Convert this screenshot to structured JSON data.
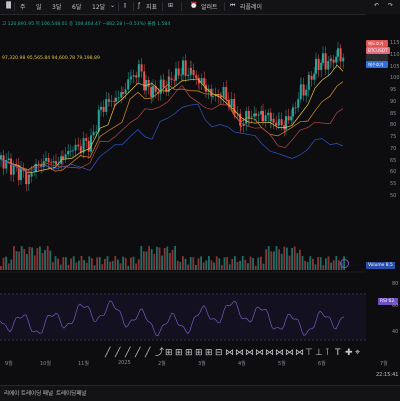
{
  "toolbar": {
    "items": [
      {
        "label": "주",
        "name": "tf-week"
      },
      {
        "label": "일",
        "name": "tf-day"
      },
      {
        "label": "3달",
        "name": "tf-3m"
      },
      {
        "label": "6달",
        "name": "tf-6m"
      },
      {
        "label": "12달",
        "name": "tf-12m"
      }
    ],
    "indicators_label": "지표",
    "alert_label": "얼러트",
    "replay_label": "리플레이"
  },
  "legend": {
    "ohlc": "고 120,891.95  저 106,548.01  종 108,464.47  −882.28 (−0.53%)  볼륨 1.584",
    "ma": "97,320.98  95,565.84  94,600.78  79,198.89"
  },
  "price_axis": {
    "ticks": [
      "115",
      "110",
      "105",
      "100",
      "95",
      "90",
      "85",
      "80",
      "75",
      "70",
      "65",
      "60",
      "55",
      "50"
    ],
    "tags": [
      {
        "label": "매도호가",
        "bg": "#e05454",
        "color": "#ffffff"
      },
      {
        "label": "BTCUSDT",
        "bg": "#e06a7a",
        "color": "#ffffff"
      },
      {
        "label": "",
        "bg": "#2a2a2e",
        "color": "#ffffff"
      },
      {
        "label": "매수호가",
        "bg": "#2f6fe0",
        "color": "#ffffff"
      }
    ]
  },
  "volume_label": "Volume",
  "volume_value": "8.5",
  "rsi_label": "RSI",
  "rsi_value": "62.",
  "rsi_ticks": [
    "80",
    "60",
    "40"
  ],
  "time_axis": [
    "9월",
    "10월",
    "11월",
    "2025",
    "2월",
    "3월",
    "4월",
    "5월",
    "6월",
    "7월"
  ],
  "drawing_tools": [
    "╱",
    "╱",
    "╱",
    "╱",
    "╱",
    "⤴",
    "⊞",
    "⊞",
    "⊞",
    "⊞",
    "⊞",
    "⊟",
    "⋈",
    "⋈",
    "⋈",
    "⋈",
    "⋈",
    "⋈",
    "⋈",
    "⋈",
    "⊤",
    "⊥",
    "⊺",
    "T",
    "✚",
    "⌖"
  ],
  "bottom_panel": {
    "left": "리에이 트레이딩 패널",
    "right": "트레이딩패널",
    "clock": "22:15:41"
  },
  "colors": {
    "up": "#26a69a",
    "down": "#ef5350",
    "ma_yellow": "#e8c547",
    "ma_orange": "#d98b2b",
    "ma_red": "#b34747",
    "ma_blue": "#2f56c9",
    "rsi": "#7e57c2"
  }
}
